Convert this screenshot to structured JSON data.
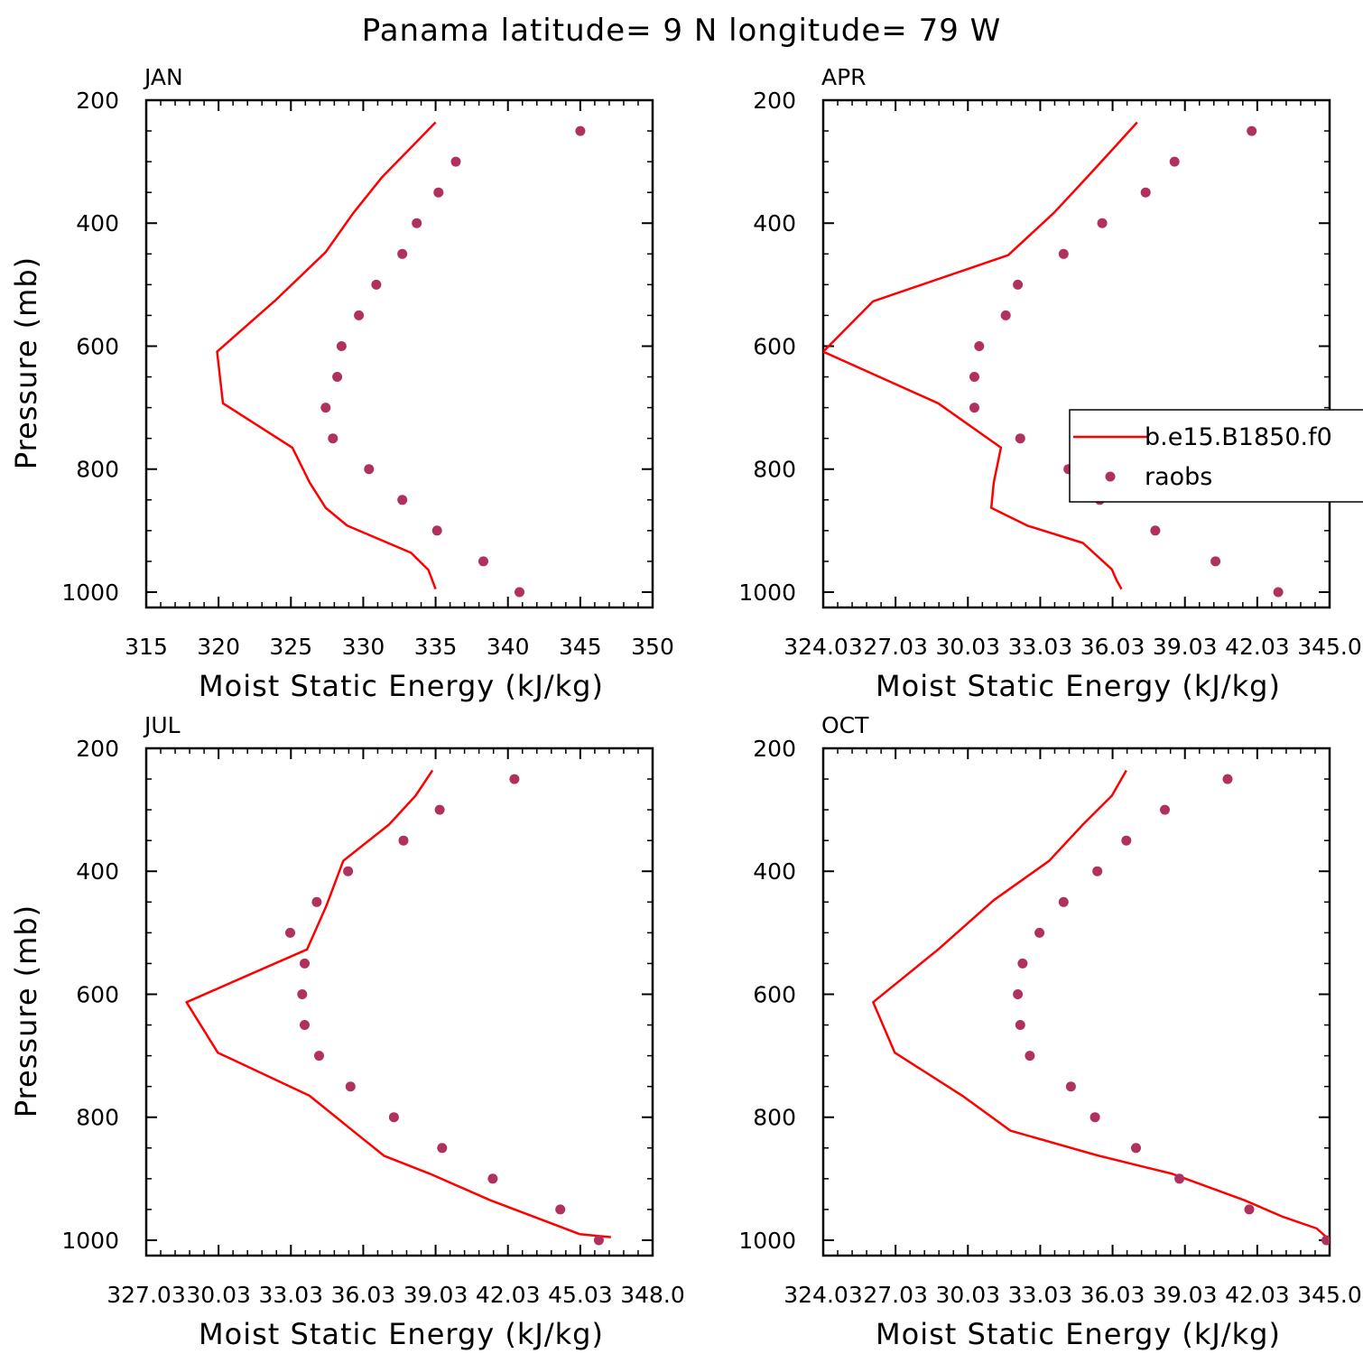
{
  "title": "Panama  latitude= 9 N longitude= 79 W",
  "colors": {
    "model": "#ff0000",
    "obs": "#b03060",
    "axes": "#000000"
  },
  "legend": {
    "placement": "right, inside APR panel (clipped)",
    "entries": [
      {
        "label": "b.e15.B1850.f0",
        "kind": "line",
        "color": "#ff0000"
      },
      {
        "label": "raobs",
        "kind": "marker",
        "color": "#b03060"
      }
    ]
  },
  "chart_data": [
    {
      "type": "line",
      "panel": "JAN",
      "xlabel": "Moist Static Energy (kJ/kg)",
      "ylabel": "Pressure (mb)",
      "xlim": [
        315,
        350
      ],
      "ylim": [
        1000,
        200
      ],
      "xticks": [
        "315",
        "320",
        "325",
        "330",
        "335",
        "340",
        "345",
        "350"
      ],
      "yticks": [
        "200",
        "400",
        "600",
        "800",
        "1000"
      ],
      "series": [
        {
          "name": "b.e15.B1850.f0",
          "kind": "line",
          "pressure": [
            236,
            277,
            325,
            384,
            447,
            526,
            609,
            693,
            765,
            822,
            863,
            892,
            936,
            964,
            995
          ],
          "mse": [
            335.0,
            333.3,
            331.3,
            329.3,
            327.4,
            323.9,
            319.9,
            320.3,
            325.1,
            326.3,
            327.4,
            328.9,
            333.3,
            334.5,
            335.0
          ]
        },
        {
          "name": "raobs",
          "kind": "scatter",
          "pressure": [
            250,
            300,
            350,
            400,
            450,
            500,
            550,
            600,
            650,
            700,
            750,
            800,
            850,
            900,
            950,
            1000
          ],
          "mse": [
            345.0,
            336.4,
            335.2,
            333.7,
            332.7,
            330.9,
            329.7,
            328.5,
            328.2,
            327.4,
            327.9,
            330.4,
            332.7,
            335.1,
            338.3,
            340.8
          ]
        }
      ]
    },
    {
      "type": "line",
      "panel": "APR",
      "xlabel": "Moist Static Energy (kJ/kg)",
      "ylabel": "",
      "xlim": [
        324.03,
        345.03
      ],
      "ylim": [
        1000,
        200
      ],
      "xticks": [
        "324.03",
        "27.03",
        "30.03",
        "33.03",
        "36.03",
        "39.03",
        "42.03",
        "345.0"
      ],
      "yticks": [
        "200",
        "400",
        "600",
        "800",
        "1000"
      ],
      "series": [
        {
          "name": "b.e15.B1850.f0",
          "kind": "line",
          "pressure": [
            236,
            277,
            324,
            383,
            452,
            527,
            609,
            693,
            765,
            822,
            863,
            892,
            920,
            963,
            981,
            995
          ],
          "mse": [
            337.05,
            336.1,
            335.0,
            333.6,
            331.7,
            326.1,
            324.03,
            328.8,
            331.4,
            331.1,
            331.0,
            332.5,
            334.8,
            336.0,
            336.2,
            336.4
          ]
        },
        {
          "name": "raobs",
          "kind": "scatter",
          "pressure": [
            250,
            300,
            350,
            400,
            450,
            500,
            550,
            600,
            650,
            700,
            750,
            800,
            850,
            900,
            950,
            1000
          ],
          "mse": [
            341.8,
            338.6,
            337.4,
            335.6,
            334.0,
            332.1,
            331.6,
            330.5,
            330.3,
            330.3,
            332.2,
            334.2,
            335.5,
            337.8,
            340.3,
            342.9
          ]
        }
      ]
    },
    {
      "type": "line",
      "panel": "JUL",
      "xlabel": "Moist Static Energy (kJ/kg)",
      "ylabel": "Pressure (mb)",
      "xlim": [
        327.03,
        348.03
      ],
      "ylim": [
        1000,
        200
      ],
      "xticks": [
        "327.03",
        "30.03",
        "33.03",
        "36.03",
        "39.03",
        "42.03",
        "45.03",
        "348.0"
      ],
      "yticks": [
        "200",
        "400",
        "600",
        "800",
        "1000"
      ],
      "series": [
        {
          "name": "b.e15.B1850.f0",
          "kind": "line",
          "pressure": [
            236,
            277,
            324,
            383,
            456,
            527,
            613,
            695,
            765,
            822,
            863,
            892,
            935,
            990,
            995
          ],
          "mse": [
            338.9,
            338.2,
            337.1,
            335.2,
            334.5,
            333.7,
            328.7,
            330.0,
            333.8,
            335.6,
            336.9,
            338.8,
            341.3,
            345.0,
            346.3
          ]
        },
        {
          "name": "raobs",
          "kind": "scatter",
          "pressure": [
            250,
            300,
            350,
            400,
            450,
            500,
            550,
            600,
            650,
            700,
            750,
            800,
            850,
            900,
            950,
            1000
          ],
          "mse": [
            342.3,
            339.2,
            337.7,
            335.4,
            334.1,
            333.0,
            333.6,
            333.5,
            333.6,
            334.2,
            335.5,
            337.3,
            339.3,
            341.4,
            344.2,
            345.8
          ]
        }
      ]
    },
    {
      "type": "line",
      "panel": "OCT",
      "xlabel": "Moist Static Energy (kJ/kg)",
      "ylabel": "",
      "xlim": [
        324.03,
        345.03
      ],
      "ylim": [
        1000,
        200
      ],
      "xticks": [
        "324.03",
        "27.03",
        "30.03",
        "33.03",
        "36.03",
        "39.03",
        "42.03",
        "345.0"
      ],
      "yticks": [
        "200",
        "400",
        "600",
        "800",
        "1000"
      ],
      "series": [
        {
          "name": "b.e15.B1850.f0",
          "kind": "line",
          "pressure": [
            236,
            277,
            324,
            383,
            447,
            527,
            613,
            695,
            765,
            822,
            862,
            892,
            935,
            962,
            981,
            995
          ],
          "mse": [
            336.6,
            336.0,
            334.8,
            333.4,
            331.1,
            328.8,
            326.1,
            327.0,
            329.8,
            331.8,
            335.4,
            338.5,
            341.5,
            343.1,
            344.5,
            344.9
          ]
        },
        {
          "name": "raobs",
          "kind": "scatter",
          "pressure": [
            250,
            300,
            350,
            400,
            450,
            500,
            550,
            600,
            650,
            700,
            750,
            800,
            850,
            900,
            950,
            1000
          ],
          "mse": [
            340.8,
            338.2,
            336.6,
            335.4,
            334.0,
            333.0,
            332.3,
            332.1,
            332.2,
            332.6,
            334.3,
            335.3,
            337.0,
            338.8,
            341.7,
            344.9
          ]
        }
      ]
    }
  ]
}
